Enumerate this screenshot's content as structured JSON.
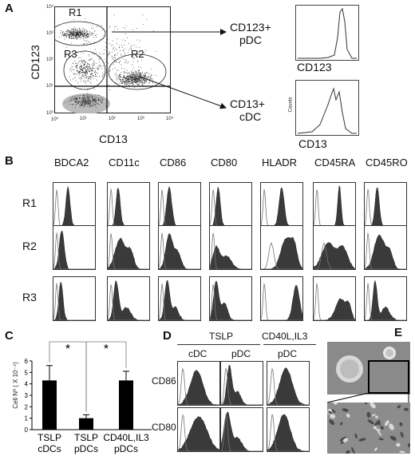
{
  "panel_a": {
    "letter": "A",
    "ylabel": "CD123",
    "xlabel": "CD13",
    "gates": [
      "R1",
      "R2",
      "R3"
    ],
    "x_ticks": [
      "10⁰",
      "10¹",
      "10²",
      "10³",
      "10⁴"
    ],
    "y_ticks": [
      "10⁰",
      "10¹",
      "10²",
      "10³",
      "10⁴"
    ],
    "callout_top_line1": "CD123+",
    "callout_top_line2": "pDC",
    "callout_bottom_line1": "CD13+",
    "callout_bottom_line2": "cDC",
    "hist_top_xlabel": "CD123",
    "hist_bottom_xlabel": "CD13",
    "hist_bottom_ylabel": "Counts"
  },
  "panel_b": {
    "letter": "B",
    "markers": [
      "BDCA2",
      "CD11c",
      "CD86",
      "CD80",
      "HLADR",
      "CD45RA",
      "CD45RO"
    ],
    "rows": [
      "R1",
      "R2",
      "R3"
    ]
  },
  "panel_c": {
    "letter": "C",
    "chart_data": {
      "type": "bar",
      "categories": [
        "TSLP cDCs",
        "TSLP pDCs",
        "CD40L,IL3 pDCs"
      ],
      "category_lines": [
        [
          "TSLP",
          "cDCs"
        ],
        [
          "TSLP",
          "pDCs"
        ],
        [
          "CD40L,IL3",
          "pDCs"
        ]
      ],
      "values": [
        4.3,
        1.0,
        4.3
      ],
      "errors": [
        1.3,
        0.3,
        0.8
      ],
      "ylabel": "Cell Nº ( X 10⁻⁴)",
      "ylim": [
        0,
        6
      ],
      "yticks": [
        "0",
        "1",
        "2",
        "3",
        "4",
        "5",
        "6"
      ],
      "significance": [
        "*",
        "*"
      ],
      "bar_color": "#000000"
    }
  },
  "panel_d": {
    "letter": "D",
    "groups": [
      "TSLP",
      "CD40L,IL3"
    ],
    "columns": [
      "cDC",
      "pDC",
      "pDC"
    ],
    "rows": [
      "CD86",
      "CD80"
    ]
  },
  "panel_e": {
    "letter": "E"
  }
}
